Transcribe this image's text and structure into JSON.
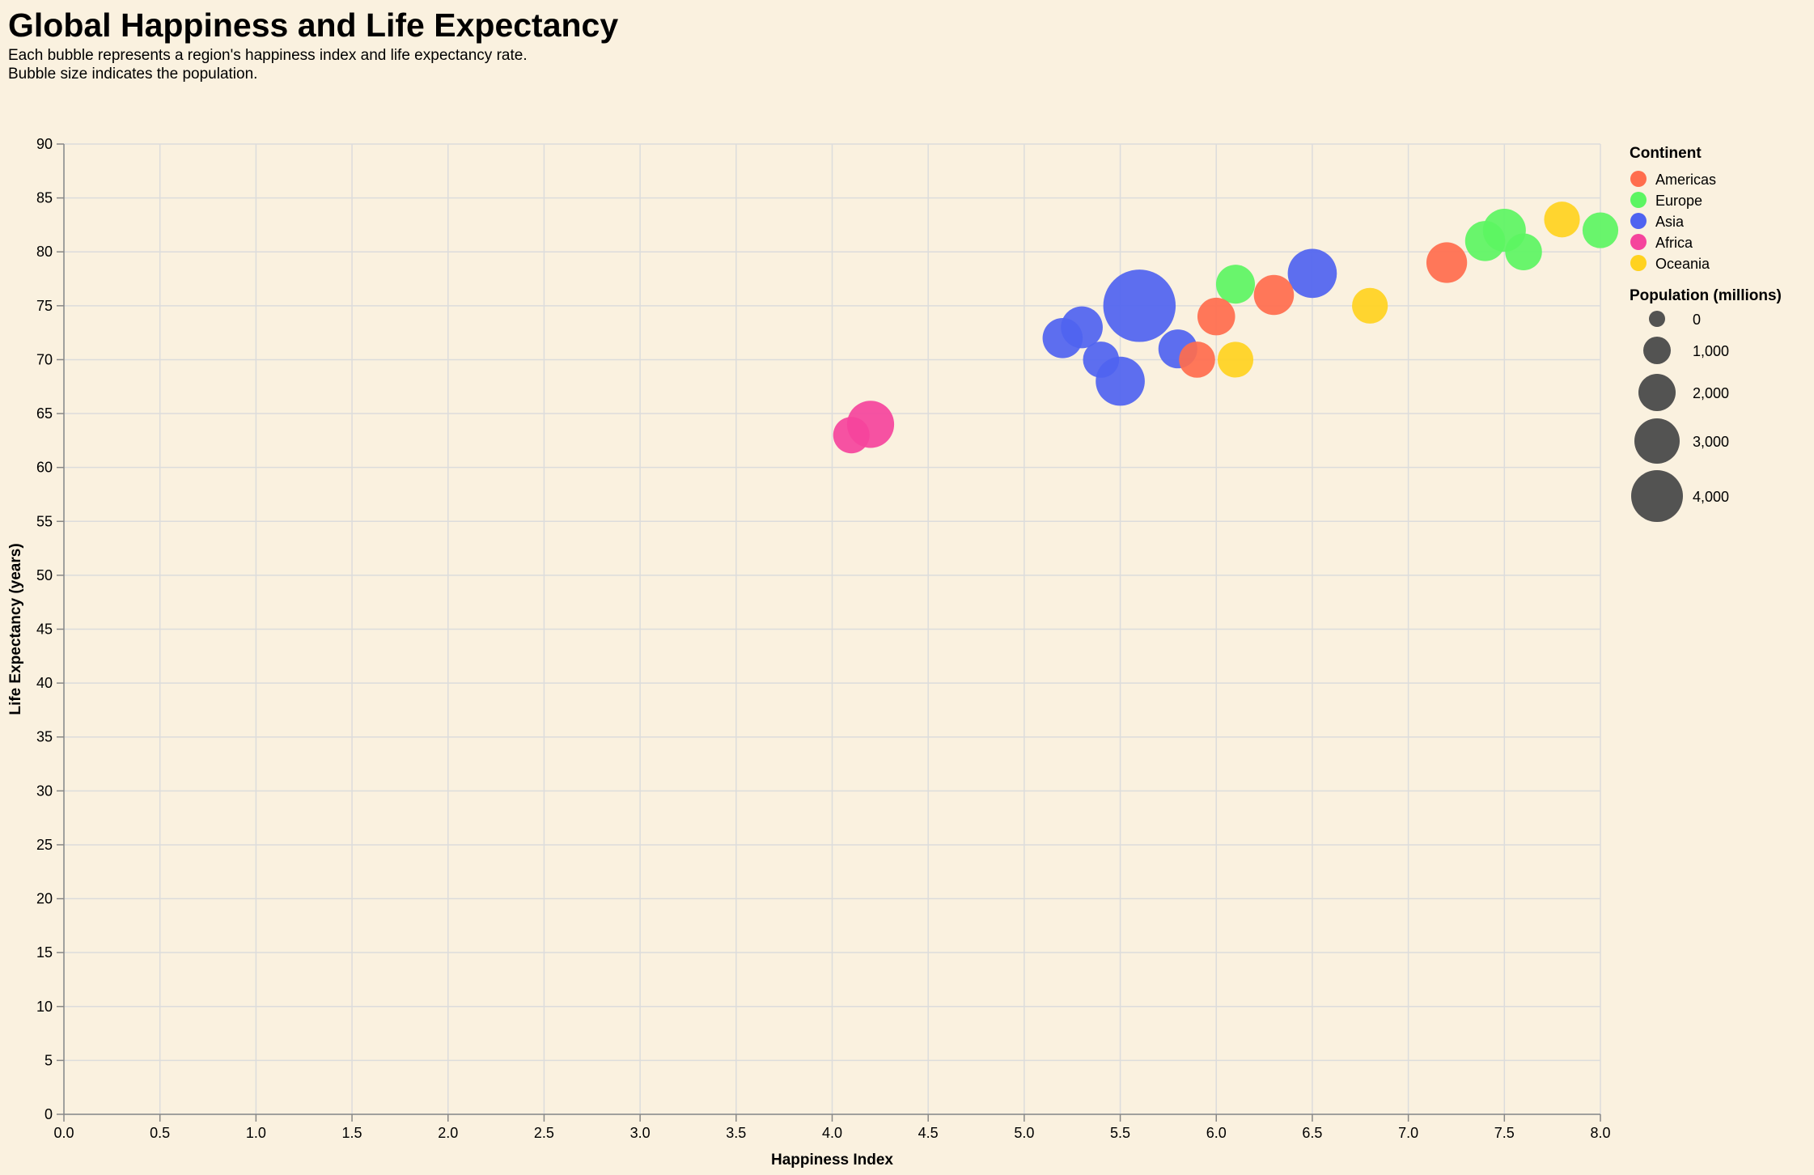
{
  "title": "Global Happiness and Life Expectancy",
  "subtitle_lines": [
    "Each bubble represents a region's happiness index and life expectancy rate.",
    "Bubble size indicates the population."
  ],
  "chart_data": {
    "type": "scatter",
    "title": "Global Happiness and Life Expectancy",
    "xlabel": "Happiness Index",
    "ylabel": "Life Expectancy (years)",
    "xlim": [
      0,
      8
    ],
    "ylim": [
      0,
      90
    ],
    "x_ticks": [
      "0.0",
      "0.5",
      "1.0",
      "1.5",
      "2.0",
      "2.5",
      "3.0",
      "3.5",
      "4.0",
      "4.5",
      "5.0",
      "5.5",
      "6.0",
      "6.5",
      "7.0",
      "7.5",
      "8.0"
    ],
    "y_ticks": [
      "0",
      "5",
      "10",
      "15",
      "20",
      "25",
      "30",
      "35",
      "40",
      "45",
      "50",
      "55",
      "60",
      "65",
      "70",
      "75",
      "80",
      "85",
      "90"
    ],
    "grid": true,
    "legend_position": "right",
    "color_legend": {
      "title": "Continent",
      "items": [
        {
          "label": "Americas",
          "color": "#ff6d4d"
        },
        {
          "label": "Europe",
          "color": "#5cf562"
        },
        {
          "label": "Asia",
          "color": "#4f63f0"
        },
        {
          "label": "Africa",
          "color": "#f5449c"
        },
        {
          "label": "Oceania",
          "color": "#ffd21f"
        }
      ]
    },
    "size_legend": {
      "title": "Population (millions)",
      "items": [
        {
          "label": "0",
          "value": 0
        },
        {
          "label": "1,000",
          "value": 1000
        },
        {
          "label": "2,000",
          "value": 2000
        },
        {
          "label": "3,000",
          "value": 3000
        },
        {
          "label": "4,000",
          "value": 4000
        }
      ]
    },
    "points": [
      {
        "continent": "Americas",
        "x": 7.2,
        "y": 79,
        "population": 700
      },
      {
        "continent": "Americas",
        "x": 6.3,
        "y": 76,
        "population": 650
      },
      {
        "continent": "Americas",
        "x": 6.0,
        "y": 74,
        "population": 450
      },
      {
        "continent": "Americas",
        "x": 5.9,
        "y": 70,
        "population": 330
      },
      {
        "continent": "Europe",
        "x": 7.5,
        "y": 82,
        "population": 900
      },
      {
        "continent": "Europe",
        "x": 7.4,
        "y": 81,
        "population": 650
      },
      {
        "continent": "Europe",
        "x": 7.6,
        "y": 80,
        "population": 380
      },
      {
        "continent": "Europe",
        "x": 8.0,
        "y": 82,
        "population": 300
      },
      {
        "continent": "Europe",
        "x": 6.1,
        "y": 77,
        "population": 550
      },
      {
        "continent": "Asia",
        "x": 5.6,
        "y": 75,
        "population": 4500
      },
      {
        "continent": "Asia",
        "x": 6.5,
        "y": 78,
        "population": 1500
      },
      {
        "continent": "Asia",
        "x": 5.5,
        "y": 68,
        "population": 1500
      },
      {
        "continent": "Asia",
        "x": 5.3,
        "y": 73,
        "population": 800
      },
      {
        "continent": "Asia",
        "x": 5.2,
        "y": 72,
        "population": 650
      },
      {
        "continent": "Asia",
        "x": 5.8,
        "y": 71,
        "population": 550
      },
      {
        "continent": "Asia",
        "x": 5.4,
        "y": 70,
        "population": 330
      },
      {
        "continent": "Africa",
        "x": 4.2,
        "y": 64,
        "population": 1300
      },
      {
        "continent": "Africa",
        "x": 4.1,
        "y": 63,
        "population": 350
      },
      {
        "continent": "Oceania",
        "x": 7.8,
        "y": 83,
        "population": 300
      },
      {
        "continent": "Oceania",
        "x": 6.8,
        "y": 75,
        "population": 300
      },
      {
        "continent": "Oceania",
        "x": 6.1,
        "y": 70,
        "population": 300
      }
    ]
  }
}
